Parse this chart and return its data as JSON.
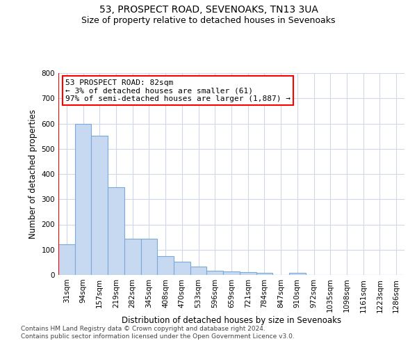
{
  "title1": "53, PROSPECT ROAD, SEVENOAKS, TN13 3UA",
  "title2": "Size of property relative to detached houses in Sevenoaks",
  "xlabel": "Distribution of detached houses by size in Sevenoaks",
  "ylabel": "Number of detached properties",
  "categories": [
    "31sqm",
    "94sqm",
    "157sqm",
    "219sqm",
    "282sqm",
    "345sqm",
    "408sqm",
    "470sqm",
    "533sqm",
    "596sqm",
    "659sqm",
    "721sqm",
    "784sqm",
    "847sqm",
    "910sqm",
    "972sqm",
    "1035sqm",
    "1098sqm",
    "1161sqm",
    "1223sqm",
    "1286sqm"
  ],
  "values": [
    122,
    600,
    553,
    348,
    143,
    143,
    75,
    53,
    32,
    16,
    13,
    12,
    8,
    0,
    8,
    0,
    0,
    0,
    0,
    0,
    0
  ],
  "bar_color": "#c6d9f0",
  "bar_edge_color": "#7aaadc",
  "annotation_line1": "53 PROSPECT ROAD: 82sqm",
  "annotation_line2": "← 3% of detached houses are smaller (61)",
  "annotation_line3": "97% of semi-detached houses are larger (1,887) →",
  "annotation_box_facecolor": "white",
  "annotation_box_edgecolor": "red",
  "vline_color": "red",
  "vline_x": -0.5,
  "ylim": [
    0,
    800
  ],
  "yticks": [
    0,
    100,
    200,
    300,
    400,
    500,
    600,
    700,
    800
  ],
  "footnote1": "Contains HM Land Registry data © Crown copyright and database right 2024.",
  "footnote2": "Contains public sector information licensed under the Open Government Licence v3.0.",
  "grid_color": "#d0d8e8",
  "bg_color": "white",
  "title1_fontsize": 10,
  "title2_fontsize": 9,
  "ylabel_fontsize": 8.5,
  "xlabel_fontsize": 8.5,
  "tick_fontsize": 7.5,
  "annotation_fontsize": 8,
  "footnote_fontsize": 6.5
}
